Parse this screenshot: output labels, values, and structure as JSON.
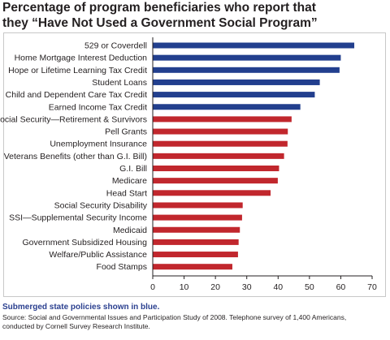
{
  "title_line1": "Percentage of program beneficiaries who report that",
  "title_line2": "they “Have Not Used a Government Social Program”",
  "note": "Submerged state policies shown in blue.",
  "source_line1": "Source: Social and Governmental Issues and Participation Study of 2008. Telephone survey of 1,400 Americans,",
  "source_line2": "conducted by Cornell Survey Research Institute.",
  "colors": {
    "submerged": "#223f8e",
    "visible": "#c1272d",
    "axis": "#231f20"
  },
  "chart_data": {
    "type": "bar",
    "orientation": "horizontal",
    "categories": [
      "529 or Coverdell",
      "Home Mortgage Interest Deduction",
      "Hope or Lifetime Learning Tax Credit",
      "Student Loans",
      "Child and Dependent Care Tax Credit",
      "Earned Income Tax Credit",
      "Social Security—Retirement & Survivors",
      "Pell Grants",
      "Unemployment Insurance",
      "Veterans Benefits (other than G.I. Bill)",
      "G.I. Bill",
      "Medicare",
      "Head Start",
      "Social Security Disability",
      "SSI—Supplemental Security Income",
      "Medicaid",
      "Government Subsidized Housing",
      "Welfare/Public Assistance",
      "Food Stamps"
    ],
    "values": [
      64.3,
      60.0,
      59.6,
      53.3,
      51.7,
      47.1,
      44.3,
      43.1,
      43.0,
      41.9,
      40.3,
      39.9,
      37.6,
      28.7,
      28.5,
      27.8,
      27.4,
      27.2,
      25.4
    ],
    "submerged": [
      true,
      true,
      true,
      true,
      true,
      true,
      false,
      false,
      false,
      false,
      false,
      false,
      false,
      false,
      false,
      false,
      false,
      false,
      false
    ],
    "xlim": [
      0,
      70
    ],
    "xticks": [
      "0",
      "10",
      "20",
      "30",
      "40",
      "50",
      "60",
      "70"
    ],
    "grid": false,
    "legend": "none"
  }
}
